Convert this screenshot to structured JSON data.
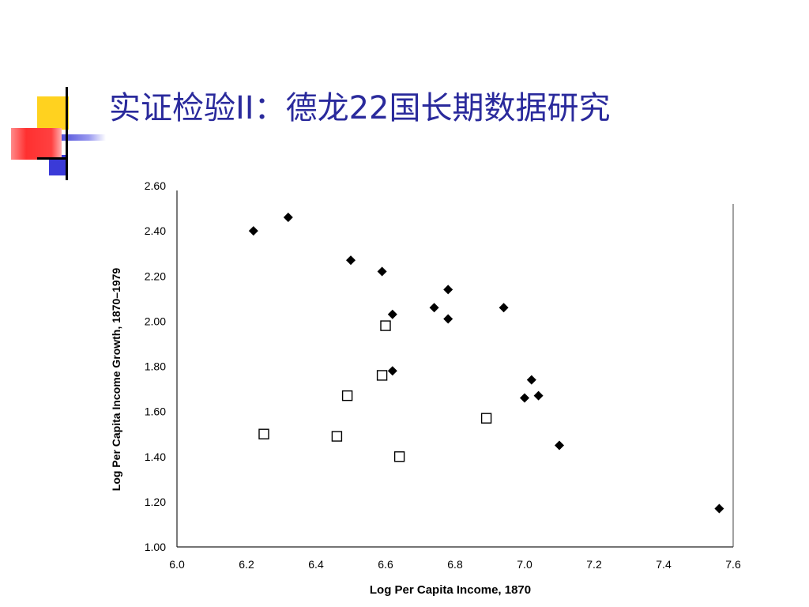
{
  "slide": {
    "title": "实证检验II：德龙22国长期数据研究"
  },
  "colors": {
    "title": "#2a2a9c",
    "accent_yellow": "#ffd21f",
    "accent_red": "#ff3030",
    "accent_blue": "#3a3ad8"
  },
  "chart_data": {
    "type": "scatter",
    "xlabel": "Log Per Capita Income, 1870",
    "ylabel": "Log Per Capita Income Growth, 1870–1979",
    "xlim": [
      6.0,
      7.6
    ],
    "ylim": [
      1.0,
      2.6
    ],
    "x_ticks": [
      "6.0",
      "6.2",
      "6.4",
      "6.6",
      "6.8",
      "7.0",
      "7.2",
      "7.4",
      "7.6"
    ],
    "y_ticks": [
      "1.00",
      "1.20",
      "1.40",
      "1.60",
      "1.80",
      "2.00",
      "2.20",
      "2.40",
      "2.60"
    ],
    "grid": false,
    "legend": "none",
    "series": [
      {
        "marker": "filled-diamond",
        "points": [
          [
            6.22,
            2.4
          ],
          [
            6.32,
            2.46
          ],
          [
            6.5,
            2.27
          ],
          [
            6.59,
            2.22
          ],
          [
            6.62,
            2.03
          ],
          [
            6.74,
            2.06
          ],
          [
            6.78,
            2.14
          ],
          [
            6.78,
            2.01
          ],
          [
            6.94,
            2.06
          ],
          [
            6.62,
            1.78
          ],
          [
            7.02,
            1.74
          ],
          [
            7.0,
            1.66
          ],
          [
            7.04,
            1.67
          ],
          [
            7.1,
            1.45
          ],
          [
            7.56,
            1.17
          ]
        ]
      },
      {
        "marker": "open-square",
        "points": [
          [
            6.25,
            1.5
          ],
          [
            6.46,
            1.49
          ],
          [
            6.49,
            1.67
          ],
          [
            6.59,
            1.76
          ],
          [
            6.6,
            1.98
          ],
          [
            6.64,
            1.4
          ],
          [
            6.89,
            1.57
          ]
        ]
      }
    ]
  }
}
